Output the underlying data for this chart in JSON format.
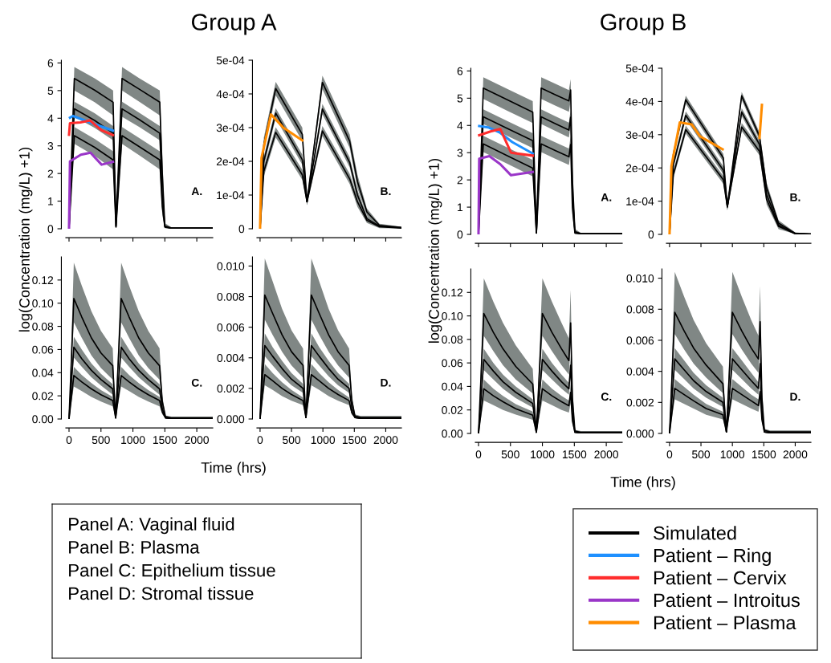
{
  "chart_data": [
    {
      "type": "line",
      "title": "Group A",
      "ylabel": "log(Concentration (mg/L) +1)",
      "annotations": [
        "A."
      ],
      "tick_labels": "y",
      "x": [
        0,
        83,
        400,
        690,
        735,
        830,
        1100,
        1420,
        1460,
        1500,
        1600,
        2250
      ],
      "xlim": [
        -50,
        2250
      ],
      "xticks": [
        0,
        500,
        1000,
        1500,
        2000
      ],
      "ylim": [
        0,
        6.1
      ],
      "yticks": [
        0,
        1,
        2,
        3,
        4,
        5,
        6
      ],
      "series": [
        {
          "color": "#000000",
          "values": [
            0,
            5.44,
            5.02,
            4.58,
            0.1,
            5.44,
            5.05,
            4.58,
            2.0,
            0.1,
            0.03,
            0.03
          ],
          "upper": [
            0,
            5.85,
            5.45,
            5.0,
            0.2,
            5.85,
            5.45,
            5.0,
            2.6,
            0.2,
            0.06,
            0.06
          ],
          "lower": [
            0,
            5.0,
            4.58,
            4.1,
            0.05,
            5.0,
            4.6,
            4.1,
            1.5,
            0.05,
            0.01,
            0.01
          ]
        },
        {
          "color": "#000000",
          "values": [
            0,
            4.34,
            3.92,
            3.46,
            0.08,
            4.34,
            3.95,
            3.46,
            1.2,
            0.08,
            0.02,
            0.02
          ],
          "upper": [
            0,
            4.6,
            4.18,
            3.72,
            0.15,
            4.6,
            4.2,
            3.72,
            1.6,
            0.15,
            0.04,
            0.04
          ],
          "lower": [
            0,
            4.05,
            3.65,
            3.2,
            0.03,
            4.05,
            3.68,
            3.2,
            0.9,
            0.03,
            0.01,
            0.01
          ]
        },
        {
          "color": "#000000",
          "values": [
            0,
            3.37,
            2.95,
            2.49,
            0.06,
            3.37,
            2.97,
            2.49,
            0.8,
            0.06,
            0.02,
            0.02
          ],
          "upper": [
            0,
            3.68,
            3.25,
            2.8,
            0.12,
            3.68,
            3.28,
            2.8,
            1.1,
            0.12,
            0.04,
            0.04
          ],
          "lower": [
            0,
            3.07,
            2.64,
            2.15,
            0.02,
            3.07,
            2.66,
            2.15,
            0.5,
            0.02,
            0.01,
            0.01
          ]
        },
        {
          "color": "#1e90ff",
          "x": [
            15,
            60,
            330,
            687
          ],
          "values": [
            4.02,
            4.08,
            3.85,
            3.55
          ]
        },
        {
          "color": "#ff2d2d",
          "x": [
            0,
            15,
            180,
            328,
            510,
            687
          ],
          "values": [
            3.4,
            3.82,
            3.85,
            3.92,
            3.56,
            3.39
          ]
        },
        {
          "color": "#9a36c8",
          "x": [
            0,
            15,
            185,
            336,
            510,
            687
          ],
          "values": [
            0,
            2.44,
            2.68,
            2.75,
            2.32,
            2.42
          ]
        }
      ]
    },
    {
      "type": "line",
      "annotations": [
        "B."
      ],
      "tick_labels": "y",
      "x": [
        0,
        60,
        249,
        672,
        747,
        992,
        1426,
        1550,
        1700,
        1900,
        2250
      ],
      "xlim": [
        -50,
        2250
      ],
      "xticks": [
        0,
        500,
        1000,
        1500,
        2000
      ],
      "ylim": [
        0,
        0.0005
      ],
      "yticks": [
        {
          "value": 0,
          "label": "0"
        },
        {
          "value": 0.0001,
          "label": "1e-04"
        },
        {
          "value": 0.0002,
          "label": "2e-04"
        },
        {
          "value": 0.0003,
          "label": "3e-04"
        },
        {
          "value": 0.0004,
          "label": "4e-04"
        },
        {
          "value": 0.0005,
          "label": "5e-04"
        }
      ],
      "series": [
        {
          "color": "#000000",
          "values": [
            0,
            0.00025,
            0.000416,
            0.00028,
            8e-05,
            0.000434,
            0.00026,
            0.00014,
            5e-05,
            1e-05,
            4e-06
          ],
          "upper": [
            0,
            0.00027,
            0.000436,
            0.0003,
            9e-05,
            0.000454,
            0.00028,
            0.00016,
            6e-05,
            1.5e-05,
            6e-06
          ],
          "lower": [
            0,
            0.00023,
            0.000396,
            0.00026,
            7e-05,
            0.000414,
            0.00024,
            0.00012,
            4e-05,
            5e-06,
            2e-06
          ]
        },
        {
          "color": "#000000",
          "values": [
            0,
            0.0002,
            0.000343,
            0.000205,
            8e-05,
            0.000355,
            0.000197,
            0.0001,
            3e-05,
            8e-06,
            3e-06
          ],
          "upper": [
            0,
            0.000215,
            0.000358,
            0.00022,
            9e-05,
            0.00037,
            0.000212,
            0.000115,
            3.8e-05,
            1.2e-05,
            5e-06
          ],
          "lower": [
            0,
            0.000185,
            0.000328,
            0.00019,
            7e-05,
            0.00034,
            0.000182,
            8.5e-05,
            2.2e-05,
            4e-06,
            1e-06
          ]
        },
        {
          "color": "#000000",
          "values": [
            0,
            0.00017,
            0.000286,
            0.00016,
            8e-05,
            0.00029,
            0.000148,
            8e-05,
            2.5e-05,
            6e-06,
            2e-06
          ],
          "upper": [
            0,
            0.000185,
            0.000301,
            0.000175,
            9e-05,
            0.000305,
            0.000163,
            9.5e-05,
            3.3e-05,
            1e-05,
            4e-06
          ],
          "lower": [
            0,
            0.000155,
            0.000271,
            0.000145,
            7e-05,
            0.000275,
            0.000133,
            6.5e-05,
            1.7e-05,
            2e-06,
            1e-06
          ]
        },
        {
          "color": "#ff8c00",
          "x": [
            0,
            23,
            174,
            370,
            672
          ],
          "values": [
            0,
            0.00021,
            0.000339,
            0.0003,
            0.000262
          ]
        }
      ]
    },
    {
      "type": "line",
      "xlabel": "Time (hrs)",
      "annotations": [
        "C."
      ],
      "x": [
        0,
        75,
        200,
        350,
        500,
        684,
        730,
        816,
        941,
        1091,
        1241,
        1417,
        1460,
        1510,
        1600,
        2250
      ],
      "xlim": [
        -50,
        2250
      ],
      "xticks": [
        0,
        500,
        1000,
        1500,
        2000
      ],
      "ylim": [
        0,
        0.14
      ],
      "yticks": [
        {
          "value": 0,
          "label": "0.00"
        },
        {
          "value": 0.02,
          "label": "0.02"
        },
        {
          "value": 0.04,
          "label": "0.04"
        },
        {
          "value": 0.06,
          "label": "0.06"
        },
        {
          "value": 0.08,
          "label": "0.08"
        },
        {
          "value": 0.1,
          "label": "0.10"
        },
        {
          "value": 0.12,
          "label": "0.12"
        }
      ],
      "series": [
        {
          "color": "#000000",
          "values": [
            0,
            0.104,
            0.088,
            0.07,
            0.057,
            0.046,
            0.001,
            0.104,
            0.088,
            0.07,
            0.057,
            0.046,
            0.015,
            0.002,
            0.001,
            0.001
          ],
          "upper": [
            0,
            0.135,
            0.115,
            0.093,
            0.076,
            0.061,
            0.002,
            0.135,
            0.115,
            0.093,
            0.076,
            0.061,
            0.02,
            0.003,
            0.002,
            0.002
          ],
          "lower": [
            0,
            0.0835,
            0.07,
            0.055,
            0.044,
            0.034,
            0.0005,
            0.0835,
            0.07,
            0.055,
            0.044,
            0.034,
            0.011,
            0.001,
            0.0005,
            0.0005
          ]
        },
        {
          "color": "#000000",
          "values": [
            0,
            0.062,
            0.052,
            0.042,
            0.034,
            0.026,
            0.001,
            0.062,
            0.052,
            0.042,
            0.034,
            0.026,
            0.009,
            0.001,
            0.0005,
            0.0005
          ],
          "upper": [
            0,
            0.071,
            0.06,
            0.048,
            0.039,
            0.03,
            0.002,
            0.071,
            0.06,
            0.048,
            0.039,
            0.03,
            0.011,
            0.002,
            0.001,
            0.001
          ],
          "lower": [
            0,
            0.053,
            0.045,
            0.036,
            0.029,
            0.021,
            0.0005,
            0.053,
            0.045,
            0.036,
            0.029,
            0.021,
            0.007,
            0.0005,
            0.0002,
            0.0002
          ]
        },
        {
          "color": "#000000",
          "values": [
            0,
            0.0375,
            0.032,
            0.026,
            0.021,
            0.016,
            0.001,
            0.0375,
            0.032,
            0.026,
            0.021,
            0.016,
            0.006,
            0.001,
            0.0003,
            0.0003
          ],
          "upper": [
            0,
            0.045,
            0.038,
            0.031,
            0.025,
            0.019,
            0.002,
            0.045,
            0.038,
            0.031,
            0.025,
            0.019,
            0.007,
            0.002,
            0.0005,
            0.0005
          ],
          "lower": [
            0,
            0.028,
            0.024,
            0.019,
            0.015,
            0.011,
            0.0005,
            0.028,
            0.024,
            0.019,
            0.015,
            0.011,
            0.004,
            0.0005,
            0.0001,
            0.0001
          ]
        }
      ]
    },
    {
      "type": "line",
      "annotations": [
        "D."
      ],
      "x": [
        0,
        75,
        200,
        350,
        500,
        684,
        730,
        816,
        941,
        1091,
        1241,
        1417,
        1460,
        1510,
        1600,
        2250
      ],
      "xlim": [
        -50,
        2250
      ],
      "xticks": [
        0,
        500,
        1000,
        1500,
        2000
      ],
      "ylim": [
        0,
        0.0106
      ],
      "yticks": [
        {
          "value": 0,
          "label": "0.000"
        },
        {
          "value": 0.002,
          "label": "0.002"
        },
        {
          "value": 0.004,
          "label": "0.004"
        },
        {
          "value": 0.006,
          "label": "0.006"
        },
        {
          "value": 0.008,
          "label": "0.008"
        },
        {
          "value": 0.01,
          "label": "0.010"
        }
      ],
      "series": [
        {
          "color": "#000000",
          "values": [
            0,
            0.0081,
            0.0069,
            0.0055,
            0.0044,
            0.0035,
            0.0001,
            0.0081,
            0.0069,
            0.0055,
            0.0044,
            0.0035,
            0.0012,
            0.0002,
            0.0001,
            0.0001
          ],
          "upper": [
            0,
            0.0105,
            0.009,
            0.0072,
            0.0058,
            0.0046,
            0.0002,
            0.0105,
            0.009,
            0.0072,
            0.0058,
            0.0046,
            0.0016,
            0.0003,
            0.0002,
            0.0002
          ],
          "lower": [
            0,
            0.0065,
            0.0055,
            0.0044,
            0.0035,
            0.0027,
            5e-05,
            0.0065,
            0.0055,
            0.0044,
            0.0035,
            0.0027,
            0.0009,
            0.0001,
            5e-05,
            5e-05
          ]
        },
        {
          "color": "#000000",
          "values": [
            0,
            0.0048,
            0.0041,
            0.0033,
            0.0026,
            0.002,
            0.0001,
            0.0048,
            0.0041,
            0.0033,
            0.0026,
            0.002,
            0.0007,
            0.0001,
            5e-05,
            5e-05
          ],
          "upper": [
            0,
            0.0056,
            0.0047,
            0.0038,
            0.003,
            0.0023,
            0.0002,
            0.0056,
            0.0047,
            0.0038,
            0.003,
            0.0023,
            0.0008,
            0.0002,
            0.0001,
            0.0001
          ],
          "lower": [
            0,
            0.0041,
            0.0035,
            0.0028,
            0.0022,
            0.0017,
            5e-05,
            0.0041,
            0.0035,
            0.0028,
            0.0022,
            0.0017,
            0.0006,
            5e-05,
            2e-05,
            2e-05
          ]
        },
        {
          "color": "#000000",
          "values": [
            0,
            0.0029,
            0.0025,
            0.002,
            0.0016,
            0.0012,
            0.0001,
            0.0029,
            0.0025,
            0.002,
            0.0016,
            0.0012,
            0.0004,
            0.0001,
            3e-05,
            3e-05
          ],
          "upper": [
            0,
            0.0036,
            0.003,
            0.0024,
            0.0019,
            0.0014,
            0.0002,
            0.0036,
            0.003,
            0.0024,
            0.0019,
            0.0014,
            0.0005,
            0.0002,
            5e-05,
            5e-05
          ],
          "lower": [
            0,
            0.0022,
            0.0019,
            0.0015,
            0.0012,
            0.0009,
            5e-05,
            0.0022,
            0.0019,
            0.0015,
            0.0012,
            0.0009,
            0.0003,
            5e-05,
            1e-05,
            1e-05
          ]
        }
      ]
    },
    {
      "type": "line",
      "title": "Group B",
      "ylabel": "log(Concentration (mg/L) +1)",
      "annotations": [
        "A."
      ],
      "tick_labels": "y",
      "legend": "bottom right",
      "x": [
        0,
        75,
        450,
        849,
        906,
        981,
        1200,
        1415,
        1442,
        1470,
        1509,
        1600,
        2250
      ],
      "xlim": [
        -50,
        2250
      ],
      "xticks": [
        0,
        500,
        1000,
        1500,
        2000
      ],
      "ylim": [
        0,
        6.1
      ],
      "yticks": [
        0,
        1,
        2,
        3,
        4,
        5,
        6
      ],
      "series": [
        {
          "name": "Simulated",
          "color": "#000000",
          "values": [
            0,
            5.37,
            4.94,
            4.49,
            0.05,
            5.37,
            5.13,
            4.9,
            5.3,
            2.0,
            0.1,
            0.03,
            0.03
          ],
          "upper": [
            0,
            5.77,
            5.34,
            4.89,
            0.1,
            5.77,
            5.53,
            5.3,
            5.7,
            2.5,
            0.2,
            0.06,
            0.06
          ],
          "lower": [
            0,
            4.97,
            4.54,
            4.09,
            0.02,
            4.97,
            4.73,
            4.5,
            4.9,
            1.5,
            0.05,
            0.01,
            0.01
          ]
        },
        {
          "color": "#000000",
          "values": [
            0,
            4.32,
            3.89,
            3.44,
            0.05,
            4.32,
            4.07,
            3.83,
            4.3,
            1.5,
            0.08,
            0.02,
            0.02
          ],
          "upper": [
            0,
            4.59,
            4.16,
            3.71,
            0.1,
            4.59,
            4.34,
            4.1,
            4.57,
            1.9,
            0.15,
            0.04,
            0.04
          ],
          "lower": [
            0,
            4.05,
            3.62,
            3.17,
            0.02,
            4.05,
            3.8,
            3.56,
            4.03,
            1.1,
            0.03,
            0.01,
            0.01
          ]
        },
        {
          "color": "#000000",
          "values": [
            0,
            3.32,
            2.89,
            2.43,
            0.05,
            3.32,
            3.08,
            2.85,
            3.3,
            1.0,
            0.05,
            0.02,
            0.02
          ],
          "upper": [
            0,
            3.62,
            3.19,
            2.73,
            0.1,
            3.62,
            3.38,
            3.15,
            3.6,
            1.3,
            0.1,
            0.04,
            0.04
          ],
          "lower": [
            0,
            3.02,
            2.59,
            2.13,
            0.02,
            3.02,
            2.78,
            2.55,
            3.0,
            0.7,
            0.02,
            0.01,
            0.01
          ]
        },
        {
          "name": "Patient – Ring",
          "color": "#1e90ff",
          "x": [
            11,
            151,
            340,
            528,
            849
          ],
          "values": [
            3.98,
            3.93,
            3.73,
            3.39,
            2.97
          ]
        },
        {
          "name": "Patient – Cervix",
          "color": "#ff2d2d",
          "x": [
            11,
            189,
            340,
            509,
            849
          ],
          "values": [
            3.64,
            3.78,
            3.87,
            3.0,
            2.89
          ]
        },
        {
          "name": "Patient – Introitus",
          "color": "#9a36c8",
          "x": [
            0,
            11,
            170,
            340,
            509,
            849
          ],
          "values": [
            0,
            2.78,
            2.87,
            2.58,
            2.17,
            2.29
          ]
        }
      ]
    },
    {
      "type": "line",
      "annotations": [
        "B."
      ],
      "tick_labels": "y",
      "x": [
        0,
        60,
        258,
        856,
        920,
        1148,
        1432,
        1545,
        1735,
        2000,
        2250
      ],
      "xlim": [
        -50,
        2250
      ],
      "xticks": [
        0,
        500,
        1000,
        1500,
        2000
      ],
      "ylim": [
        0,
        0.0005
      ],
      "yticks": [
        {
          "value": 0,
          "label": "0"
        },
        {
          "value": 0.0001,
          "label": "1e-04"
        },
        {
          "value": 0.0002,
          "label": "2e-04"
        },
        {
          "value": 0.0003,
          "label": "3e-04"
        },
        {
          "value": 0.0004,
          "label": "4e-04"
        },
        {
          "value": 0.0005,
          "label": "5e-04"
        }
      ],
      "series": [
        {
          "color": "#000000",
          "values": [
            0,
            0.00024,
            0.000405,
            0.00023,
            8.3e-05,
            0.000417,
            0.000295,
            0.00014,
            3.4e-05,
            3e-06,
            1e-06
          ],
          "upper": [
            0,
            0.000252,
            0.000417,
            0.000242,
            9.3e-05,
            0.000429,
            0.000307,
            0.000155,
            4.2e-05,
            6e-06,
            2e-06
          ],
          "lower": [
            0,
            0.000228,
            0.000393,
            0.000218,
            7.3e-05,
            0.000405,
            0.000283,
            0.000125,
            2.6e-05,
            1e-06,
            0
          ]
        },
        {
          "color": "#000000",
          "values": [
            0,
            0.00021,
            0.000358,
            0.000193,
            8.3e-05,
            0.000368,
            0.00027,
            0.00012,
            2.8e-05,
            2e-06,
            1e-06
          ],
          "upper": [
            0,
            0.000222,
            0.00037,
            0.000205,
            9.3e-05,
            0.00038,
            0.000282,
            0.000135,
            3.6e-05,
            5e-06,
            2e-06
          ],
          "lower": [
            0,
            0.000198,
            0.000346,
            0.000181,
            7.3e-05,
            0.000356,
            0.000258,
            0.000105,
            2e-05,
            1e-06,
            0
          ]
        },
        {
          "color": "#000000",
          "values": [
            0,
            0.00018,
            0.000315,
            0.000164,
            8.3e-05,
            0.000323,
            0.00025,
            0.000105,
            2.4e-05,
            2e-06,
            1e-06
          ],
          "upper": [
            0,
            0.000192,
            0.000327,
            0.000176,
            9.3e-05,
            0.000335,
            0.000262,
            0.00012,
            3.2e-05,
            5e-06,
            2e-06
          ],
          "lower": [
            0,
            0.000168,
            0.000303,
            0.000152,
            7.3e-05,
            0.000311,
            0.000238,
            9e-05,
            1.6e-05,
            1e-06,
            0
          ]
        },
        {
          "name": "Patient – Plasma",
          "color": "#ff8c00",
          "x": [
            0,
            30,
            163,
            352,
            485,
            845,
            1140,
            1432,
            1470
          ],
          "values": [
            0,
            0.000205,
            0.000337,
            0.000331,
            0.000295,
            0.000256,
            null,
            0.00029,
            0.00039
          ]
        }
      ]
    },
    {
      "type": "line",
      "xlabel": "Time (hrs)",
      "annotations": [
        "C."
      ],
      "x": [
        0,
        83,
        233,
        383,
        583,
        849,
        905,
        1000,
        1150,
        1300,
        1415,
        1442,
        1470,
        1509,
        1600,
        2250
      ],
      "xlim": [
        -50,
        2250
      ],
      "xticks": [
        0,
        500,
        1000,
        1500,
        2000
      ],
      "ylim": [
        0,
        0.14
      ],
      "yticks": [
        {
          "value": 0,
          "label": "0.00"
        },
        {
          "value": 0.02,
          "label": "0.02"
        },
        {
          "value": 0.04,
          "label": "0.04"
        },
        {
          "value": 0.06,
          "label": "0.06"
        },
        {
          "value": 0.08,
          "label": "0.08"
        },
        {
          "value": 0.1,
          "label": "0.10"
        },
        {
          "value": 0.12,
          "label": "0.12"
        }
      ],
      "series": [
        {
          "color": "#000000",
          "values": [
            0,
            0.102,
            0.086,
            0.072,
            0.057,
            0.042,
            0.001,
            0.102,
            0.086,
            0.072,
            0.062,
            0.094,
            0.03,
            0.002,
            0.001,
            0.001
          ],
          "upper": [
            0,
            0.132,
            0.112,
            0.094,
            0.075,
            0.055,
            0.002,
            0.132,
            0.112,
            0.094,
            0.081,
            0.122,
            0.04,
            0.003,
            0.002,
            0.002
          ],
          "lower": [
            0,
            0.083,
            0.07,
            0.058,
            0.046,
            0.034,
            0.0005,
            0.083,
            0.07,
            0.058,
            0.05,
            0.076,
            0.024,
            0.001,
            0.0005,
            0.0005
          ]
        },
        {
          "color": "#000000",
          "values": [
            0,
            0.063,
            0.053,
            0.044,
            0.035,
            0.0255,
            0.001,
            0.063,
            0.053,
            0.044,
            0.038,
            0.058,
            0.018,
            0.001,
            0.0005,
            0.0005
          ],
          "upper": [
            0,
            0.072,
            0.06,
            0.05,
            0.04,
            0.029,
            0.002,
            0.072,
            0.06,
            0.05,
            0.043,
            0.066,
            0.021,
            0.002,
            0.001,
            0.001
          ],
          "lower": [
            0,
            0.054,
            0.046,
            0.038,
            0.03,
            0.022,
            0.0005,
            0.054,
            0.046,
            0.038,
            0.033,
            0.05,
            0.015,
            0.0005,
            0.0002,
            0.0002
          ]
        },
        {
          "color": "#000000",
          "values": [
            0,
            0.038,
            0.032,
            0.027,
            0.021,
            0.0155,
            0.001,
            0.038,
            0.032,
            0.027,
            0.0236,
            0.035,
            0.011,
            0.001,
            0.0003,
            0.0003
          ],
          "upper": [
            0,
            0.046,
            0.038,
            0.032,
            0.025,
            0.0186,
            0.002,
            0.046,
            0.038,
            0.032,
            0.028,
            0.042,
            0.013,
            0.002,
            0.0005,
            0.0005
          ],
          "lower": [
            0,
            0.028,
            0.024,
            0.02,
            0.016,
            0.0116,
            0.0005,
            0.028,
            0.024,
            0.02,
            0.0177,
            0.026,
            0.008,
            0.0005,
            0.0001,
            0.0001
          ]
        }
      ]
    },
    {
      "type": "line",
      "annotations": [
        "D."
      ],
      "x": [
        0,
        83,
        233,
        383,
        583,
        849,
        905,
        1000,
        1150,
        1300,
        1415,
        1442,
        1470,
        1509,
        1600,
        2250
      ],
      "xlim": [
        -50,
        2250
      ],
      "xticks": [
        0,
        500,
        1000,
        1500,
        2000
      ],
      "ylim": [
        0,
        0.0106
      ],
      "yticks": [
        {
          "value": 0,
          "label": "0.000"
        },
        {
          "value": 0.002,
          "label": "0.002"
        },
        {
          "value": 0.004,
          "label": "0.004"
        },
        {
          "value": 0.006,
          "label": "0.006"
        },
        {
          "value": 0.008,
          "label": "0.008"
        },
        {
          "value": 0.01,
          "label": "0.010"
        }
      ],
      "series": [
        {
          "color": "#000000",
          "values": [
            0,
            0.0078,
            0.0066,
            0.0055,
            0.0044,
            0.0032,
            0.0001,
            0.0078,
            0.0066,
            0.0055,
            0.0048,
            0.0072,
            0.0023,
            0.0002,
            0.0001,
            0.0001
          ],
          "upper": [
            0,
            0.0104,
            0.0088,
            0.0073,
            0.0058,
            0.0043,
            0.0002,
            0.0104,
            0.0088,
            0.0073,
            0.0063,
            0.0095,
            0.003,
            0.0003,
            0.0002,
            0.0002
          ],
          "lower": [
            0,
            0.0064,
            0.0054,
            0.0045,
            0.0036,
            0.0026,
            5e-05,
            0.0064,
            0.0054,
            0.0045,
            0.0039,
            0.0058,
            0.0019,
            0.0001,
            5e-05,
            5e-05
          ]
        },
        {
          "color": "#000000",
          "values": [
            0,
            0.0048,
            0.0041,
            0.0034,
            0.0027,
            0.002,
            0.0001,
            0.0048,
            0.0041,
            0.0034,
            0.0029,
            0.0045,
            0.0014,
            0.0001,
            5e-05,
            5e-05
          ],
          "upper": [
            0,
            0.0055,
            0.0047,
            0.0039,
            0.0031,
            0.0023,
            0.0002,
            0.0055,
            0.0047,
            0.0039,
            0.0033,
            0.0051,
            0.0016,
            0.0002,
            0.0001,
            0.0001
          ],
          "lower": [
            0,
            0.0041,
            0.0035,
            0.0029,
            0.0023,
            0.0017,
            5e-05,
            0.0041,
            0.0035,
            0.0029,
            0.0025,
            0.0039,
            0.0012,
            5e-05,
            2e-05,
            2e-05
          ]
        },
        {
          "color": "#000000",
          "values": [
            0,
            0.0029,
            0.0025,
            0.0021,
            0.0016,
            0.0012,
            0.0001,
            0.0029,
            0.0025,
            0.0021,
            0.0018,
            0.0027,
            0.0009,
            0.0001,
            3e-05,
            3e-05
          ],
          "upper": [
            0,
            0.0035,
            0.003,
            0.0025,
            0.0019,
            0.0014,
            0.0002,
            0.0035,
            0.003,
            0.0025,
            0.0022,
            0.0032,
            0.0011,
            0.0002,
            5e-05,
            5e-05
          ],
          "lower": [
            0,
            0.0022,
            0.0019,
            0.0016,
            0.0012,
            0.0009,
            5e-05,
            0.0022,
            0.0019,
            0.0016,
            0.0014,
            0.002,
            0.0007,
            5e-05,
            1e-05,
            1e-05
          ]
        }
      ]
    },
    {
      "type": "other",
      "annotations": [
        "Panel A: Vaginal fluid",
        "Panel B: Plasma",
        "Panel C: Epithelium tissue",
        "Panel D: Stromal tissue"
      ]
    }
  ]
}
